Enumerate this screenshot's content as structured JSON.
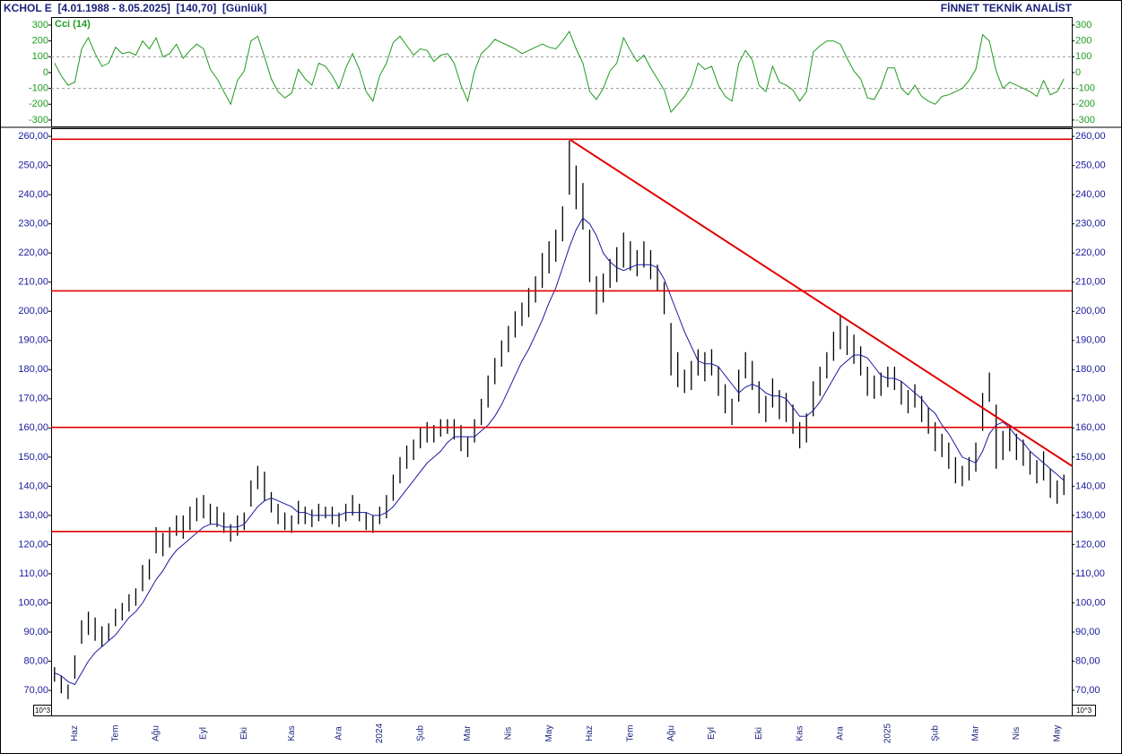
{
  "header": {
    "title": "KCHOL E  [4.01.1988 - 8.05.2025]  [140,70]  [Günlük]",
    "brand": "FİNNET TEKNİK ANALİST"
  },
  "chart_data": [
    {
      "type": "line",
      "series": [
        {
          "name": "Cci (14)",
          "color": "#1f9a1f",
          "values": [
            60,
            -20,
            -80,
            -60,
            150,
            220,
            120,
            40,
            60,
            160,
            120,
            130,
            110,
            200,
            150,
            220,
            100,
            120,
            180,
            90,
            140,
            180,
            150,
            20,
            -40,
            -120,
            -200,
            -50,
            10,
            200,
            230,
            100,
            -40,
            -120,
            -160,
            -130,
            20,
            -40,
            -80,
            60,
            40,
            -20,
            -100,
            30,
            120,
            20,
            -120,
            -180,
            -20,
            60,
            190,
            230,
            170,
            110,
            150,
            140,
            70,
            110,
            120,
            60,
            -80,
            -180,
            10,
            120,
            160,
            210,
            190,
            170,
            150,
            120,
            140,
            160,
            180,
            160,
            150,
            200,
            260,
            150,
            60,
            -120,
            -170,
            -100,
            10,
            60,
            220,
            140,
            70,
            110,
            30,
            -40,
            -110,
            -250,
            -200,
            -150,
            -80,
            60,
            20,
            40,
            -80,
            -150,
            -180,
            60,
            140,
            80,
            -80,
            -120,
            40,
            -60,
            -80,
            -110,
            -180,
            -120,
            130,
            170,
            200,
            200,
            180,
            90,
            10,
            -40,
            -160,
            -170,
            -90,
            30,
            30,
            -100,
            -140,
            -80,
            -150,
            -180,
            -200,
            -150,
            -140,
            -120,
            -100,
            -50,
            20,
            240,
            200,
            10,
            -100,
            -60,
            -80,
            -100,
            -120,
            -150,
            -50,
            -140,
            -120,
            -40
          ]
        }
      ],
      "ylim": [
        -340,
        351
      ],
      "yticks": [
        300,
        200,
        100,
        0,
        -100,
        -200,
        -300
      ],
      "grid_levels": [
        100,
        -100
      ]
    },
    {
      "type": "range",
      "categories": [
        null,
        null,
        null,
        "Haz",
        null,
        null,
        null,
        null,
        null,
        "Tem",
        null,
        null,
        null,
        null,
        null,
        "Ağu",
        null,
        null,
        null,
        null,
        null,
        null,
        "Eyl",
        null,
        null,
        null,
        null,
        null,
        "Eki",
        null,
        null,
        null,
        null,
        null,
        null,
        "Kas",
        null,
        null,
        null,
        null,
        null,
        null,
        "Ara",
        null,
        null,
        null,
        null,
        null,
        "2024",
        null,
        null,
        null,
        null,
        null,
        "Şub",
        null,
        null,
        null,
        null,
        null,
        null,
        "Mar",
        null,
        null,
        null,
        null,
        null,
        "Nis",
        null,
        null,
        null,
        null,
        null,
        "May",
        null,
        null,
        null,
        null,
        null,
        "Haz",
        null,
        null,
        null,
        null,
        null,
        "Tem",
        null,
        null,
        null,
        null,
        null,
        "Ağu",
        null,
        null,
        null,
        null,
        null,
        "Eyl",
        null,
        null,
        null,
        null,
        null,
        null,
        "Eki",
        null,
        null,
        null,
        null,
        null,
        "Kas",
        null,
        null,
        null,
        null,
        null,
        "Ara",
        null,
        null,
        null,
        null,
        null,
        null,
        "2025",
        null,
        null,
        null,
        null,
        null,
        null,
        "Şub",
        null,
        null,
        null,
        null,
        null,
        "Mar",
        null,
        null,
        null,
        null,
        null,
        "Nis",
        null,
        null,
        null,
        null,
        null,
        "May",
        null
      ],
      "high": [
        78,
        75,
        72,
        82,
        94,
        97,
        95,
        92,
        93,
        98,
        100,
        103,
        105,
        113,
        115,
        126,
        124,
        126,
        130,
        130,
        133,
        136,
        137,
        134,
        133,
        131,
        127,
        130,
        131,
        142,
        147,
        145,
        138,
        134,
        131,
        130,
        135,
        133,
        132,
        134,
        133,
        133,
        131,
        134,
        137,
        134,
        131,
        130,
        133,
        137,
        144,
        150,
        154,
        156,
        160,
        162,
        161,
        163,
        163,
        163,
        161,
        157,
        163,
        170,
        178,
        184,
        190,
        195,
        200,
        203,
        208,
        212,
        220,
        224,
        228,
        236,
        258.5,
        250,
        244,
        228,
        212,
        213,
        218,
        222,
        227,
        224,
        221,
        224,
        221,
        216,
        210,
        196,
        186,
        180,
        183,
        187,
        186,
        187,
        181,
        175,
        170,
        180,
        186,
        183,
        176,
        171,
        177,
        173,
        172,
        168,
        162,
        165,
        176,
        181,
        186,
        193,
        199,
        195,
        192,
        188,
        181,
        178,
        179,
        181,
        181,
        176,
        173,
        175,
        171,
        167,
        162,
        158,
        155,
        150,
        147,
        150,
        155,
        172,
        179,
        168,
        159,
        161,
        158,
        156,
        152,
        149,
        152,
        146,
        142,
        144
      ],
      "low": [
        73,
        69,
        67,
        74,
        86,
        89,
        87,
        85,
        87,
        92,
        94,
        97,
        99,
        104,
        108,
        117,
        116,
        119,
        123,
        122,
        125,
        128,
        129,
        127,
        126,
        124,
        121,
        123,
        125,
        133,
        139,
        135,
        131,
        127,
        125,
        124,
        127,
        127,
        126,
        128,
        129,
        127,
        126,
        128,
        130,
        128,
        125,
        124,
        127,
        129,
        135,
        141,
        146,
        149,
        153,
        155,
        155,
        157,
        158,
        156,
        152,
        150,
        155,
        161,
        167,
        175,
        181,
        186,
        191,
        195,
        198,
        203,
        208,
        213,
        217,
        224,
        240,
        235,
        228,
        210,
        199,
        203,
        208,
        210,
        215,
        214,
        212,
        215,
        211,
        207,
        199,
        178,
        174,
        172,
        173,
        178,
        176,
        178,
        171,
        165,
        161,
        169,
        177,
        173,
        165,
        162,
        167,
        163,
        162,
        158,
        153,
        155,
        164,
        171,
        177,
        183,
        187,
        185,
        182,
        178,
        171,
        170,
        171,
        174,
        173,
        168,
        165,
        167,
        162,
        158,
        152,
        150,
        146,
        141,
        140,
        142,
        145,
        159,
        169,
        146,
        149,
        152,
        149,
        147,
        144,
        141,
        142,
        136,
        134,
        137
      ],
      "color": "#000000",
      "ma": {
        "color": "#1a1aa0",
        "values": [
          76,
          75,
          73,
          72,
          76,
          80,
          83,
          85,
          87,
          89,
          92,
          95,
          97,
          100,
          104,
          108,
          111,
          115,
          118,
          120,
          122,
          124,
          126,
          127,
          127,
          126,
          126,
          126,
          127,
          130,
          133,
          135,
          136,
          135,
          134,
          133,
          131,
          131,
          130,
          130,
          130,
          130,
          130,
          131,
          131,
          131,
          131,
          130,
          130,
          131,
          133,
          136,
          139,
          142,
          145,
          148,
          150,
          152,
          155,
          157,
          157,
          157,
          157,
          159,
          161,
          164,
          168,
          173,
          178,
          183,
          187,
          192,
          197,
          203,
          208,
          215,
          222,
          228,
          232,
          230,
          226,
          220,
          217,
          215,
          214,
          215,
          216,
          216,
          216,
          215,
          211,
          205,
          199,
          193,
          188,
          183,
          182,
          182,
          181,
          178,
          175,
          172,
          174,
          175,
          174,
          172,
          171,
          171,
          170,
          167,
          164,
          164,
          166,
          169,
          173,
          177,
          181,
          183,
          185,
          185,
          184,
          181,
          178,
          177,
          177,
          176,
          174,
          172,
          170,
          167,
          165,
          161,
          158,
          154,
          150,
          149,
          148,
          152,
          158,
          161,
          162,
          160,
          157,
          155,
          152,
          150,
          148,
          146,
          144,
          142
        ]
      },
      "levels": {
        "color": "#e00000",
        "values": [
          259,
          207,
          160.2,
          124.5
        ]
      },
      "trendline": {
        "color": "#e00000",
        "values": [
          259,
          147
        ]
      },
      "ylim": [
        61.4,
        262.8
      ],
      "yticks": [
        {
          "value": 70,
          "label": "70,00"
        },
        {
          "value": 80,
          "label": "80,00"
        },
        {
          "value": 90,
          "label": "90,00"
        },
        {
          "value": 100,
          "label": "100,00"
        },
        {
          "value": 110,
          "label": "110,00"
        },
        {
          "value": 120,
          "label": "120,00"
        },
        {
          "value": 130,
          "label": "130,00"
        },
        {
          "value": 140,
          "label": "140,00"
        },
        {
          "value": 150,
          "label": "150,00"
        },
        {
          "value": 160,
          "label": "160,00"
        },
        {
          "value": 170,
          "label": "170,00"
        },
        {
          "value": 180,
          "label": "180,00"
        },
        {
          "value": 190,
          "label": "190,00"
        },
        {
          "value": 200,
          "label": "200,00"
        },
        {
          "value": 210,
          "label": "210,00"
        },
        {
          "value": 220,
          "label": "220,00"
        },
        {
          "value": 230,
          "label": "230,00"
        },
        {
          "value": 240,
          "label": "240,00"
        },
        {
          "value": 250,
          "label": "250,00"
        },
        {
          "value": 260,
          "label": "260,00"
        }
      ],
      "unit_label": "10^3"
    }
  ]
}
